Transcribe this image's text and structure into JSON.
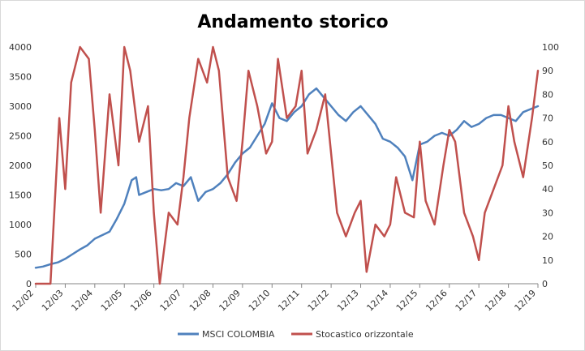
{
  "chart_data": {
    "type": "line",
    "title": "Andamento storico",
    "x_categories": [
      "12/02",
      "12/03",
      "12/04",
      "12/05",
      "12/06",
      "12/07",
      "12/08",
      "12/09",
      "12/10",
      "12/11",
      "12/12",
      "12/13",
      "12/14",
      "12/15",
      "12/16",
      "12/17",
      "12/18",
      "12/19"
    ],
    "y_left": {
      "min": 0,
      "max": 4000,
      "ticks": [
        "0",
        "500",
        "1000",
        "1500",
        "2000",
        "2500",
        "3000",
        "3500",
        "4000"
      ]
    },
    "y_right": {
      "min": 0,
      "max": 100,
      "ticks": [
        "0",
        "10",
        "20",
        "30",
        "40",
        "50",
        "60",
        "70",
        "80",
        "90",
        "100"
      ]
    },
    "grid": false,
    "legend_position": "bottom",
    "series": [
      {
        "name": "MSCI COLOMBIA",
        "axis": "left",
        "color": "#4f81bd",
        "x": [
          0,
          0.25,
          0.5,
          0.75,
          1,
          1.25,
          1.5,
          1.75,
          2,
          2.25,
          2.5,
          2.75,
          3,
          3.25,
          3.4,
          3.5,
          3.75,
          4,
          4.25,
          4.5,
          4.75,
          5,
          5.25,
          5.5,
          5.75,
          6,
          6.25,
          6.5,
          6.75,
          7,
          7.25,
          7.5,
          7.75,
          8,
          8.25,
          8.5,
          8.75,
          9,
          9.25,
          9.5,
          9.75,
          10,
          10.25,
          10.5,
          10.75,
          11,
          11.25,
          11.5,
          11.75,
          12,
          12.25,
          12.5,
          12.75,
          13,
          13.25,
          13.5,
          13.75,
          14,
          14.25,
          14.5,
          14.75,
          15,
          15.25,
          15.5,
          15.75,
          16,
          16.25,
          16.5,
          16.75,
          17
        ],
        "values": [
          270,
          290,
          330,
          360,
          420,
          500,
          580,
          650,
          760,
          820,
          880,
          1100,
          1350,
          1750,
          1800,
          1500,
          1550,
          1600,
          1580,
          1600,
          1700,
          1650,
          1800,
          1400,
          1550,
          1600,
          1700,
          1850,
          2050,
          2200,
          2300,
          2500,
          2700,
          3050,
          2800,
          2750,
          2900,
          3000,
          3200,
          3300,
          3150,
          3000,
          2850,
          2750,
          2900,
          3000,
          2850,
          2700,
          2450,
          2400,
          2300,
          2150,
          1750,
          2350,
          2400,
          2500,
          2550,
          2500,
          2600,
          2750,
          2650,
          2700,
          2800,
          2850,
          2850,
          2800,
          2750,
          2900,
          2950,
          3000
        ]
      },
      {
        "name": "Stocastico orizzontale",
        "axis": "right",
        "color": "#c0504d",
        "x": [
          0,
          0.5,
          0.8,
          1,
          1.2,
          1.5,
          1.8,
          2,
          2.2,
          2.5,
          2.8,
          3,
          3.2,
          3.5,
          3.8,
          4,
          4.2,
          4.5,
          4.8,
          5,
          5.2,
          5.5,
          5.8,
          6,
          6.2,
          6.5,
          6.8,
          7,
          7.2,
          7.5,
          7.8,
          8,
          8.2,
          8.5,
          8.8,
          9,
          9.2,
          9.5,
          9.8,
          10,
          10.2,
          10.5,
          10.8,
          11,
          11.2,
          11.5,
          11.8,
          12,
          12.2,
          12.5,
          12.8,
          13,
          13.2,
          13.5,
          13.8,
          14,
          14.2,
          14.5,
          14.8,
          15,
          15.2,
          15.5,
          15.8,
          16,
          16.2,
          16.5,
          16.8,
          17
        ],
        "values": [
          0,
          0,
          70,
          40,
          85,
          100,
          95,
          65,
          30,
          80,
          50,
          100,
          90,
          60,
          75,
          30,
          0,
          30,
          25,
          45,
          70,
          95,
          85,
          100,
          90,
          45,
          35,
          60,
          90,
          75,
          55,
          60,
          95,
          70,
          75,
          90,
          55,
          65,
          80,
          55,
          30,
          20,
          30,
          35,
          5,
          25,
          20,
          25,
          45,
          30,
          28,
          60,
          35,
          25,
          50,
          65,
          60,
          30,
          20,
          10,
          30,
          40,
          50,
          75,
          60,
          45,
          70,
          90
        ]
      }
    ]
  }
}
